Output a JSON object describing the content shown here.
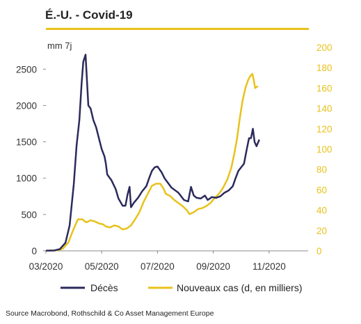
{
  "chart_data": {
    "type": "line",
    "title": "É.-U. - Covid-19",
    "unit_label": "mm 7j",
    "x_tick_labels": [
      "03/2020",
      "05/2020",
      "07/2020",
      "09/2020",
      "11/2020"
    ],
    "y_left": {
      "ticks": [
        0,
        500,
        1000,
        1500,
        2000,
        2500
      ],
      "ylim": [
        0,
        2800
      ]
    },
    "y_right": {
      "ticks": [
        0,
        20,
        40,
        60,
        80,
        100,
        120,
        140,
        160,
        180,
        200
      ],
      "ylim": [
        0,
        200
      ]
    },
    "x_range_months": [
      0,
      9.4
    ],
    "grid": false,
    "legend_position": "bottom",
    "series": [
      {
        "name": "Décès",
        "axis": "left",
        "color": "#2b2a5c",
        "points": [
          [
            0,
            2
          ],
          [
            0.3,
            5
          ],
          [
            0.5,
            25
          ],
          [
            0.7,
            110
          ],
          [
            0.85,
            350
          ],
          [
            1.0,
            920
          ],
          [
            1.1,
            1450
          ],
          [
            1.2,
            1800
          ],
          [
            1.28,
            2300
          ],
          [
            1.34,
            2600
          ],
          [
            1.42,
            2700
          ],
          [
            1.52,
            2000
          ],
          [
            1.6,
            1960
          ],
          [
            1.7,
            1800
          ],
          [
            1.8,
            1700
          ],
          [
            1.9,
            1550
          ],
          [
            2.0,
            1400
          ],
          [
            2.1,
            1300
          ],
          [
            2.15,
            1200
          ],
          [
            2.2,
            1050
          ],
          [
            2.35,
            970
          ],
          [
            2.5,
            850
          ],
          [
            2.6,
            720
          ],
          [
            2.75,
            620
          ],
          [
            2.85,
            620
          ],
          [
            2.93,
            780
          ],
          [
            3.0,
            880
          ],
          [
            3.05,
            600
          ],
          [
            3.15,
            660
          ],
          [
            3.3,
            730
          ],
          [
            3.45,
            820
          ],
          [
            3.6,
            890
          ],
          [
            3.7,
            1000
          ],
          [
            3.8,
            1100
          ],
          [
            3.9,
            1150
          ],
          [
            4.0,
            1160
          ],
          [
            4.15,
            1080
          ],
          [
            4.25,
            1000
          ],
          [
            4.5,
            870
          ],
          [
            4.75,
            800
          ],
          [
            4.95,
            700
          ],
          [
            5.1,
            680
          ],
          [
            5.2,
            880
          ],
          [
            5.3,
            760
          ],
          [
            5.4,
            730
          ],
          [
            5.55,
            720
          ],
          [
            5.7,
            760
          ],
          [
            5.8,
            700
          ],
          [
            5.95,
            740
          ],
          [
            6.1,
            730
          ],
          [
            6.25,
            750
          ],
          [
            6.4,
            800
          ],
          [
            6.55,
            830
          ],
          [
            6.7,
            890
          ],
          [
            6.8,
            1000
          ],
          [
            6.9,
            1100
          ],
          [
            7.0,
            1150
          ],
          [
            7.1,
            1200
          ],
          [
            7.2,
            1400
          ],
          [
            7.28,
            1550
          ],
          [
            7.35,
            1550
          ],
          [
            7.42,
            1680
          ],
          [
            7.48,
            1500
          ],
          [
            7.55,
            1440
          ],
          [
            7.65,
            1530
          ]
        ]
      },
      {
        "name": "Nouveaux cas (d, en milliers)",
        "axis": "right",
        "color": "#e8c21b",
        "points": [
          [
            0,
            0.2
          ],
          [
            0.4,
            0.5
          ],
          [
            0.6,
            2
          ],
          [
            0.8,
            8
          ],
          [
            1.0,
            22
          ],
          [
            1.15,
            31
          ],
          [
            1.3,
            31
          ],
          [
            1.45,
            28
          ],
          [
            1.6,
            30
          ],
          [
            1.75,
            29
          ],
          [
            1.9,
            27
          ],
          [
            2.05,
            26
          ],
          [
            2.15,
            24
          ],
          [
            2.3,
            23
          ],
          [
            2.45,
            25
          ],
          [
            2.6,
            24
          ],
          [
            2.75,
            21
          ],
          [
            2.9,
            22
          ],
          [
            3.05,
            25
          ],
          [
            3.2,
            31
          ],
          [
            3.35,
            38
          ],
          [
            3.5,
            48
          ],
          [
            3.65,
            56
          ],
          [
            3.8,
            64
          ],
          [
            3.95,
            66
          ],
          [
            4.1,
            66
          ],
          [
            4.2,
            62
          ],
          [
            4.3,
            56
          ],
          [
            4.45,
            54
          ],
          [
            4.6,
            50
          ],
          [
            4.75,
            47
          ],
          [
            4.9,
            44
          ],
          [
            5.05,
            40
          ],
          [
            5.15,
            36
          ],
          [
            5.3,
            38
          ],
          [
            5.45,
            41
          ],
          [
            5.6,
            42
          ],
          [
            5.75,
            44
          ],
          [
            5.9,
            47
          ],
          [
            6.05,
            52
          ],
          [
            6.2,
            56
          ],
          [
            6.35,
            62
          ],
          [
            6.5,
            70
          ],
          [
            6.65,
            82
          ],
          [
            6.75,
            95
          ],
          [
            6.85,
            110
          ],
          [
            6.95,
            130
          ],
          [
            7.05,
            148
          ],
          [
            7.15,
            160
          ],
          [
            7.25,
            168
          ],
          [
            7.33,
            172
          ],
          [
            7.4,
            174
          ],
          [
            7.45,
            168
          ],
          [
            7.5,
            160
          ],
          [
            7.6,
            162
          ]
        ]
      }
    ]
  },
  "source_text": "Source Macrobond, Rothschild & Co Asset Management Europe"
}
